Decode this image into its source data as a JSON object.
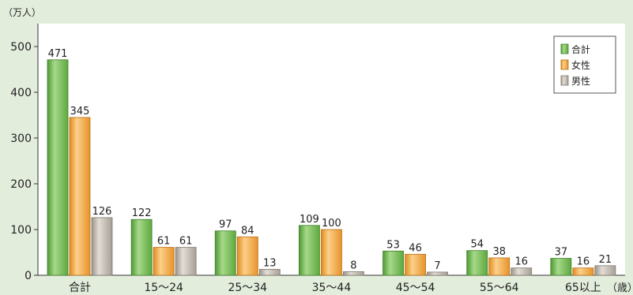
{
  "chart_data": {
    "type": "bar",
    "unit_label": "（万人）",
    "x_unit_label": "（歳）",
    "categories": [
      "合計",
      "15～24",
      "25～34",
      "35～44",
      "45～54",
      "55～64",
      "65以上"
    ],
    "series": [
      {
        "name": "合計",
        "values": [
          471,
          122,
          97,
          109,
          53,
          54,
          37
        ]
      },
      {
        "name": "女性",
        "values": [
          345,
          61,
          84,
          100,
          46,
          38,
          16
        ]
      },
      {
        "name": "男性",
        "values": [
          126,
          61,
          13,
          8,
          7,
          16,
          21
        ]
      }
    ],
    "ylim": [
      0,
      550
    ],
    "yticks": [
      0,
      100,
      200,
      300,
      400,
      500
    ],
    "grid": false,
    "legend_position": "top-right",
    "colors": {
      "合計": "#6cb24a",
      "女性": "#f2a33a",
      "男性": "#b8b0a6",
      "background": "#e3eddc",
      "plot_bg": "#ffffff"
    }
  }
}
